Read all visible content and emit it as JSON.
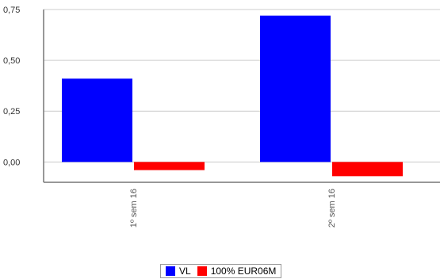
{
  "chart_data": {
    "type": "bar",
    "title": "",
    "xlabel": "",
    "ylabel": "",
    "categories": [
      "1º sem 16",
      "2º sem 16"
    ],
    "series": [
      {
        "name": "VL",
        "color": "#0000ff",
        "values": [
          0.41,
          0.72
        ]
      },
      {
        "name": "100% EUR06M",
        "color": "#ff0000",
        "values": [
          -0.04,
          -0.07
        ]
      }
    ],
    "ylim": [
      -0.1,
      0.75
    ],
    "yticks": [
      "0,75",
      "0,50",
      "0,25",
      "0,00"
    ],
    "ytick_values": [
      0.75,
      0.5,
      0.25,
      0.0
    ],
    "grid": true,
    "legend_position": "bottom"
  }
}
